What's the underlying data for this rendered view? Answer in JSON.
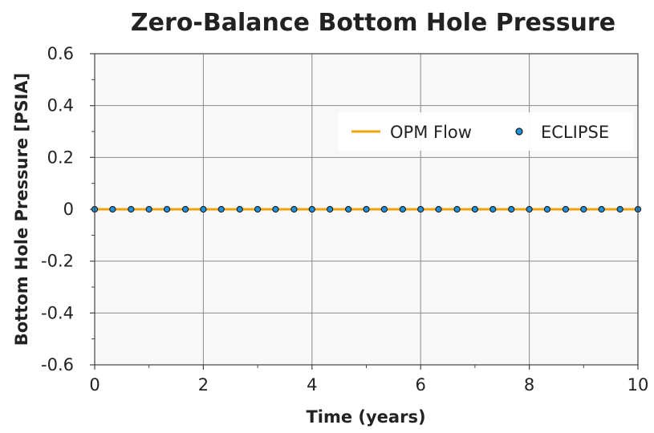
{
  "chart_data": {
    "type": "line",
    "title": "Zero-Balance Bottom Hole Pressure",
    "xlabel": "Time (years)",
    "ylabel": "Bottom Hole Pressure [PSIA]",
    "xlim": [
      0,
      10
    ],
    "ylim": [
      -0.6,
      0.6
    ],
    "x_ticks": [
      0,
      2,
      4,
      6,
      8,
      10
    ],
    "x_tick_labels": [
      "0",
      "2",
      "4",
      "6",
      "8",
      "10"
    ],
    "y_ticks": [
      0.6,
      0.4,
      0.2,
      0,
      -0.2,
      -0.4,
      -0.6
    ],
    "y_tick_labels": [
      "0.6",
      "0.4",
      "0.2",
      "0",
      "-0.2",
      "-0.4",
      "-0.6"
    ],
    "grid": true,
    "legend_position": "top-right",
    "series": [
      {
        "name": "OPM Flow",
        "style": "line",
        "color": "#f0a30a",
        "x": [
          0,
          10
        ],
        "y": [
          0,
          0
        ]
      },
      {
        "name": "ECLIPSE",
        "style": "markers",
        "color": "#1e90dc",
        "x": [
          0,
          0.33,
          0.67,
          1.0,
          1.33,
          1.67,
          2.0,
          2.33,
          2.67,
          3.0,
          3.33,
          3.67,
          4.0,
          4.33,
          4.67,
          5.0,
          5.33,
          5.67,
          6.0,
          6.33,
          6.67,
          7.0,
          7.33,
          7.67,
          8.0,
          8.33,
          8.67,
          9.0,
          9.33,
          9.67,
          10.0
        ],
        "y": [
          0,
          0,
          0,
          0,
          0,
          0,
          0,
          0,
          0,
          0,
          0,
          0,
          0,
          0,
          0,
          0,
          0,
          0,
          0,
          0,
          0,
          0,
          0,
          0,
          0,
          0,
          0,
          0,
          0,
          0,
          0
        ]
      }
    ]
  }
}
